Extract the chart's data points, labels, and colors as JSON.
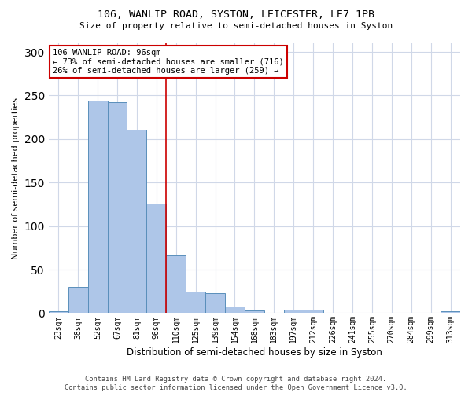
{
  "title_line1": "106, WANLIP ROAD, SYSTON, LEICESTER, LE7 1PB",
  "title_line2": "Size of property relative to semi-detached houses in Syston",
  "xlabel": "Distribution of semi-detached houses by size in Syston",
  "ylabel": "Number of semi-detached properties",
  "categories": [
    "23sqm",
    "38sqm",
    "52sqm",
    "67sqm",
    "81sqm",
    "96sqm",
    "110sqm",
    "125sqm",
    "139sqm",
    "154sqm",
    "168sqm",
    "183sqm",
    "197sqm",
    "212sqm",
    "226sqm",
    "241sqm",
    "255sqm",
    "270sqm",
    "284sqm",
    "299sqm",
    "313sqm"
  ],
  "values": [
    2,
    30,
    244,
    242,
    211,
    126,
    66,
    25,
    23,
    8,
    3,
    0,
    4,
    4,
    0,
    0,
    0,
    0,
    0,
    0,
    2
  ],
  "bar_color": "#aec6e8",
  "bar_edge_color": "#5a8fbb",
  "highlight_index": 5,
  "annotation_text": "106 WANLIP ROAD: 96sqm\n← 73% of semi-detached houses are smaller (716)\n26% of semi-detached houses are larger (259) →",
  "annotation_box_color": "#ffffff",
  "annotation_border_color": "#cc0000",
  "vline_color": "#cc0000",
  "ylim": [
    0,
    310
  ],
  "yticks": [
    0,
    50,
    100,
    150,
    200,
    250,
    300
  ],
  "footer": "Contains HM Land Registry data © Crown copyright and database right 2024.\nContains public sector information licensed under the Open Government Licence v3.0.",
  "bg_color": "#ffffff",
  "grid_color": "#d0d8e8"
}
